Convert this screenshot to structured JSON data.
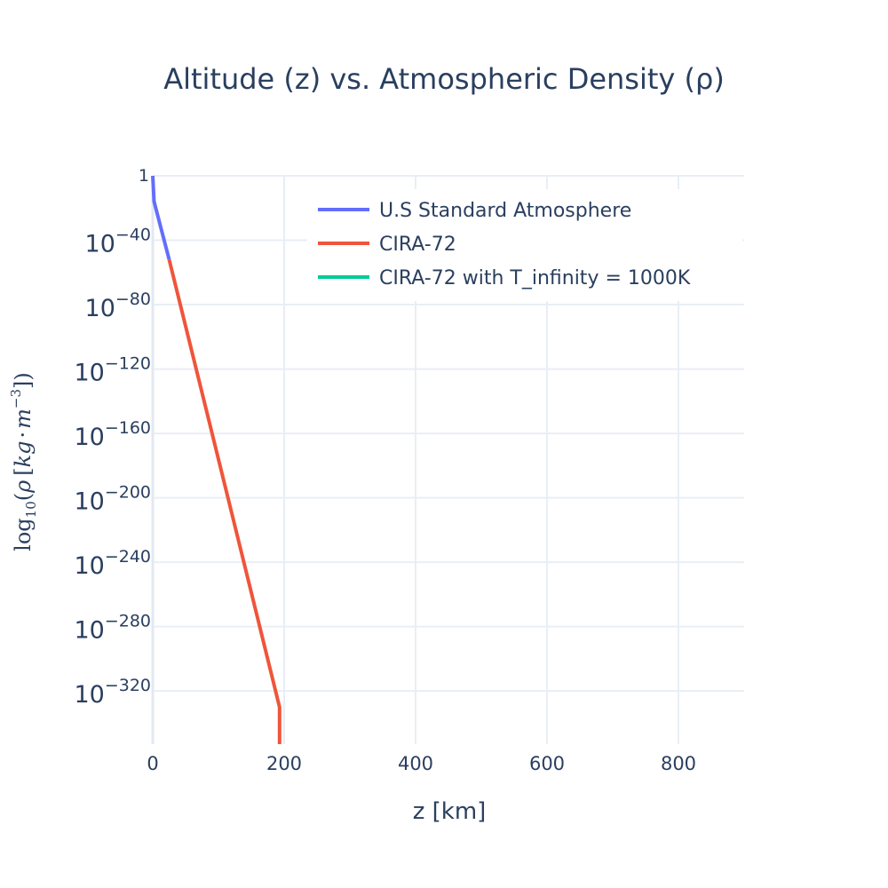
{
  "chart_data": {
    "type": "line",
    "title": "Altitude (z) vs. Atmospheric Density (ρ)",
    "xlabel": "z [km]",
    "ylabel": {
      "fn": "log",
      "sub": "10",
      "open": "(",
      "rho": "ρ",
      "lbr": "[",
      "kg": "kg",
      "dot": "·",
      "m": "m",
      "exp": "−3",
      "rbr": "]",
      "close": ")"
    },
    "xlim": [
      0,
      900
    ],
    "ylim": [
      -353,
      0
    ],
    "y_scale": "log",
    "grid": true,
    "legend_position": "top-right",
    "x_ticks": [
      {
        "value": 0,
        "label": "0"
      },
      {
        "value": 200,
        "label": "200"
      },
      {
        "value": 400,
        "label": "400"
      },
      {
        "value": 600,
        "label": "600"
      },
      {
        "value": 800,
        "label": "800"
      }
    ],
    "y_ticks": [
      {
        "value": 0,
        "base": "1",
        "exp": ""
      },
      {
        "value": -40,
        "base": "10",
        "exp": "−40"
      },
      {
        "value": -80,
        "base": "10",
        "exp": "−80"
      },
      {
        "value": -120,
        "base": "10",
        "exp": "−120"
      },
      {
        "value": -160,
        "base": "10",
        "exp": "−160"
      },
      {
        "value": -200,
        "base": "10",
        "exp": "−200"
      },
      {
        "value": -240,
        "base": "10",
        "exp": "−240"
      },
      {
        "value": -280,
        "base": "10",
        "exp": "−280"
      },
      {
        "value": -320,
        "base": "10",
        "exp": "−320"
      }
    ],
    "series": [
      {
        "name": "U.S Standard Atmosphere",
        "color": "#636efa",
        "x": [
          0,
          2,
          25
        ],
        "y": [
          0,
          -16,
          -52
        ]
      },
      {
        "name": "CIRA-72",
        "color": "#ef553b",
        "x": [
          25,
          100,
          193,
          193
        ],
        "y": [
          -52,
          -176,
          -330,
          -353
        ]
      },
      {
        "name": "CIRA-72 with T_infinity = 1000K",
        "color": "#00cc96",
        "x": [],
        "y": []
      }
    ]
  }
}
